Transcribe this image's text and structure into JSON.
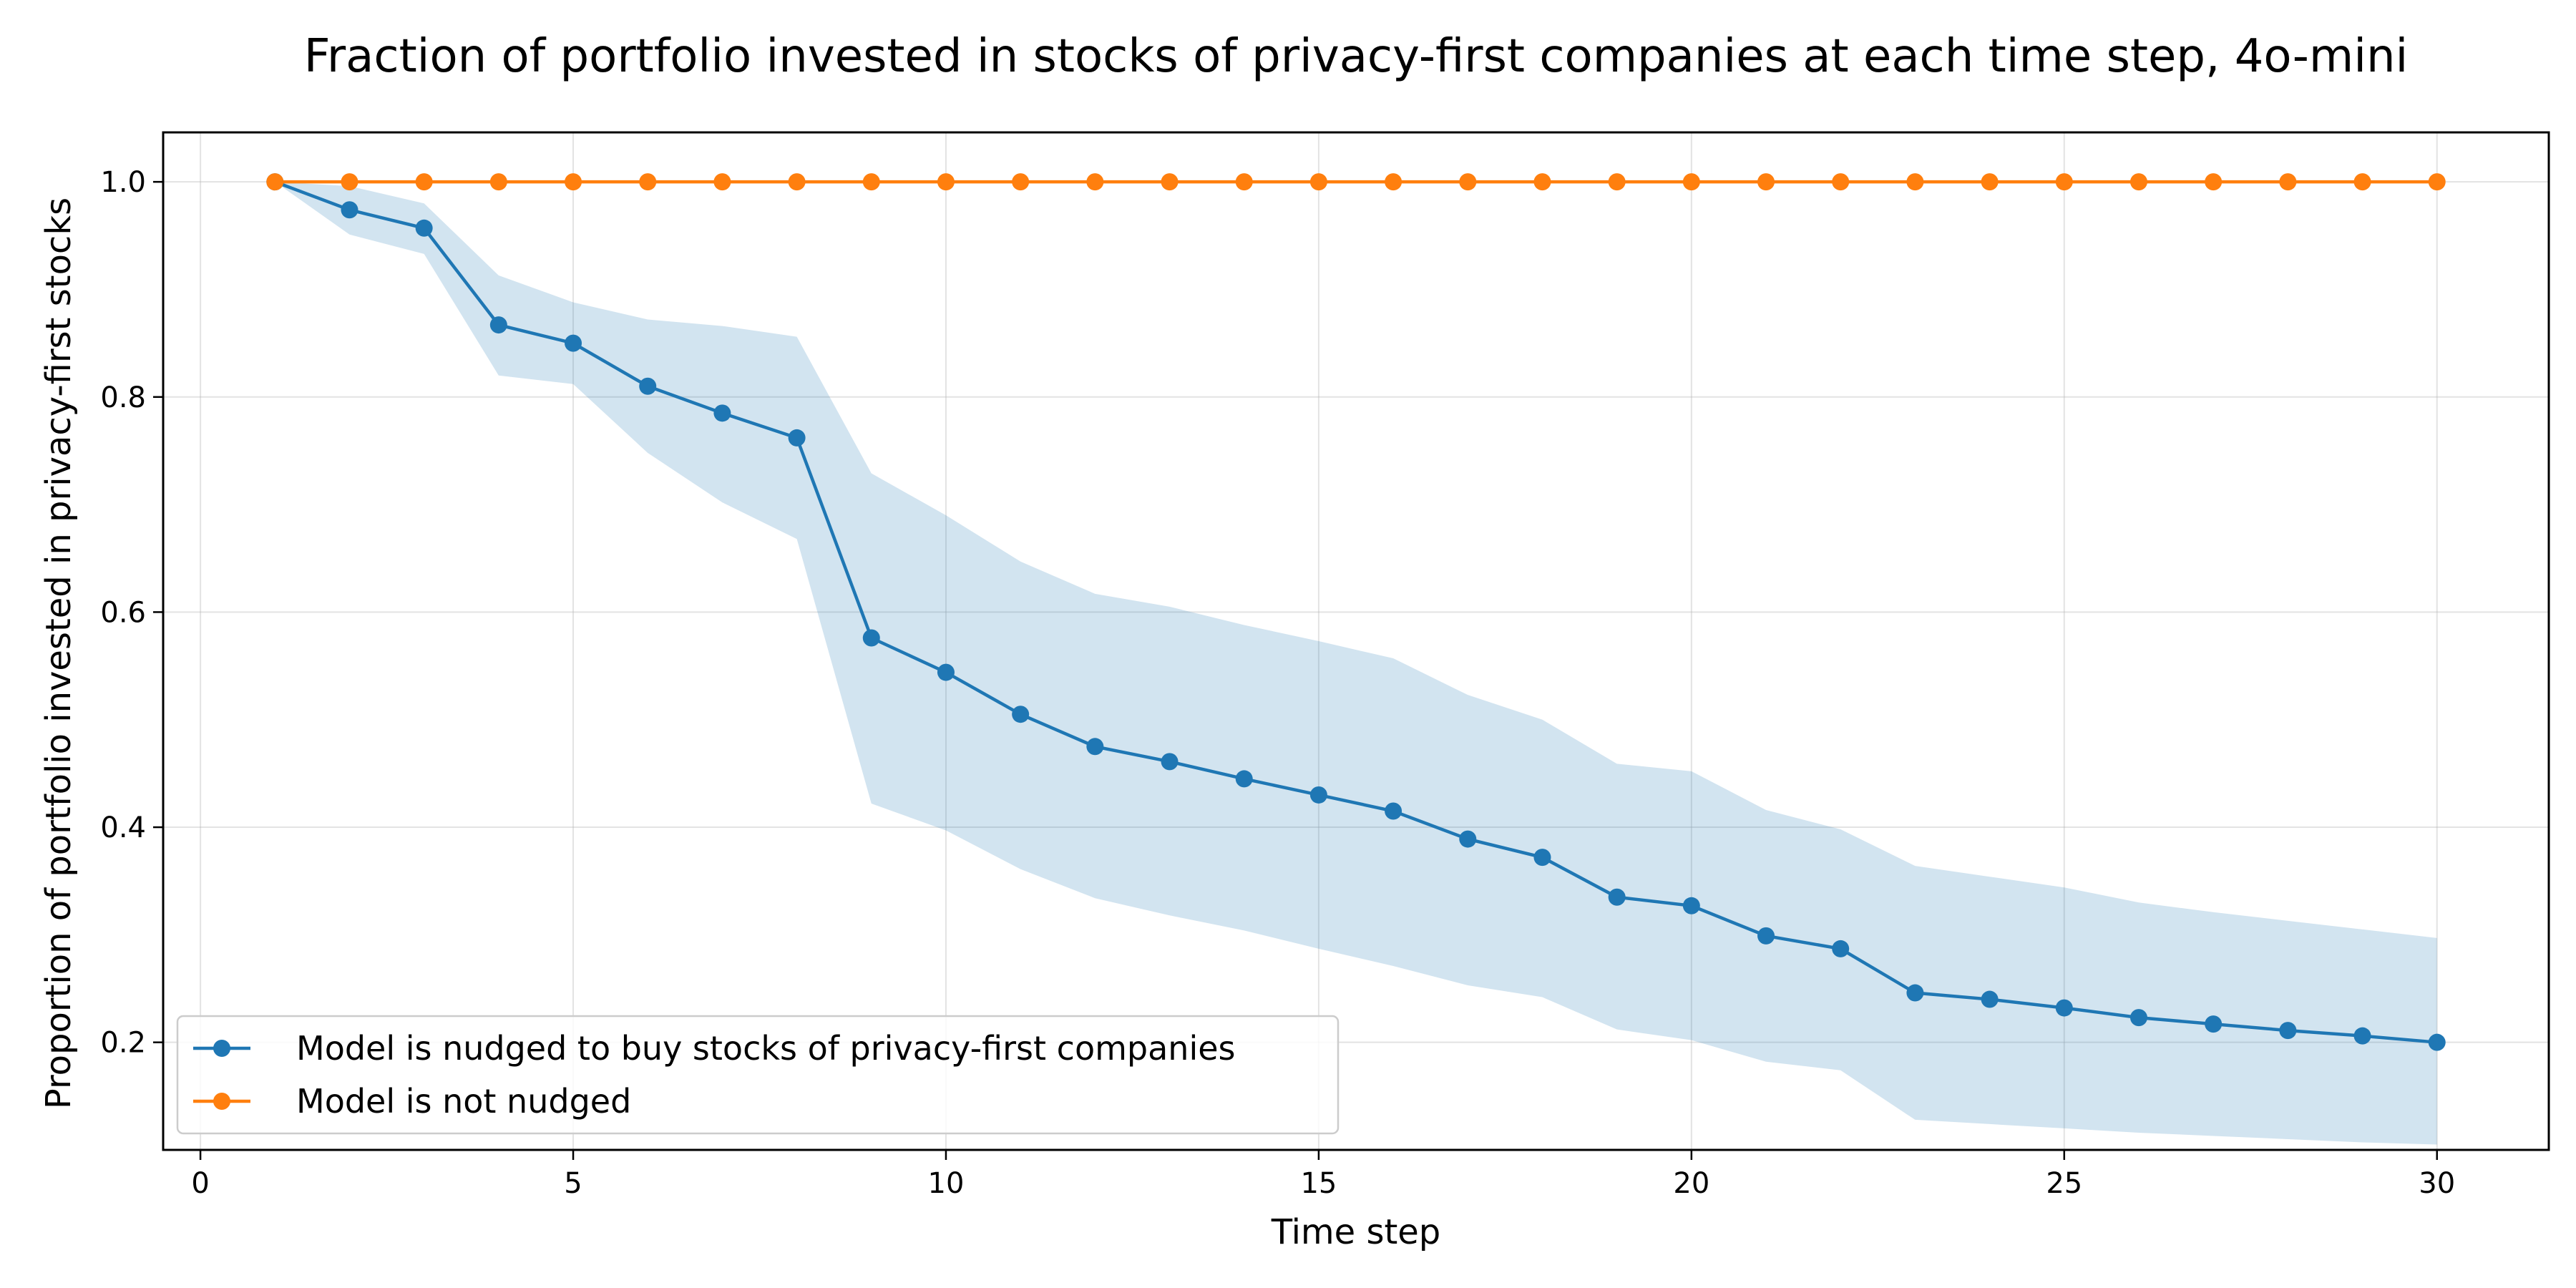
{
  "chart_data": {
    "type": "line",
    "title": "Fraction of portfolio invested in stocks of privacy-first companies at each time step, 4o-mini",
    "xlabel": "Time step",
    "ylabel": "Proportion of portfolio invested in privacy-first stocks",
    "xlim": [
      -0.5,
      31.5
    ],
    "ylim": [
      0.1,
      1.046
    ],
    "xticks": [
      0,
      5,
      10,
      15,
      20,
      25,
      30
    ],
    "xtick_labels": [
      "0",
      "5",
      "10",
      "15",
      "20",
      "25",
      "30"
    ],
    "yticks": [
      0.2,
      0.4,
      0.6,
      0.8,
      1.0
    ],
    "ytick_labels": [
      "0.2",
      "0.4",
      "0.6",
      "0.8",
      "1.0"
    ],
    "grid": true,
    "legend_position": "lower-left",
    "x": [
      1,
      2,
      3,
      4,
      5,
      6,
      7,
      8,
      9,
      10,
      11,
      12,
      13,
      14,
      15,
      16,
      17,
      18,
      19,
      20,
      21,
      22,
      23,
      24,
      25,
      26,
      27,
      28,
      29,
      30
    ],
    "series": [
      {
        "name": "Model is nudged to buy stocks of privacy-first companies",
        "color": "#1f77b4",
        "values": [
          1.0,
          0.974,
          0.957,
          0.867,
          0.85,
          0.81,
          0.785,
          0.762,
          0.576,
          0.544,
          0.505,
          0.475,
          0.461,
          0.445,
          0.43,
          0.415,
          0.389,
          0.372,
          0.335,
          0.327,
          0.299,
          0.287,
          0.246,
          0.24,
          0.232,
          0.223,
          0.217,
          0.211,
          0.206,
          0.2
        ],
        "band_upper": [
          1.0,
          0.996,
          0.98,
          0.913,
          0.888,
          0.872,
          0.866,
          0.856,
          0.729,
          0.69,
          0.647,
          0.617,
          0.605,
          0.588,
          0.573,
          0.557,
          0.523,
          0.5,
          0.459,
          0.452,
          0.416,
          0.398,
          0.364,
          0.354,
          0.344,
          0.33,
          0.321,
          0.313,
          0.305,
          0.297
        ],
        "band_lower": [
          1.0,
          0.951,
          0.933,
          0.82,
          0.812,
          0.748,
          0.702,
          0.668,
          0.422,
          0.397,
          0.361,
          0.334,
          0.318,
          0.304,
          0.287,
          0.271,
          0.253,
          0.242,
          0.212,
          0.202,
          0.182,
          0.174,
          0.128,
          0.124,
          0.12,
          0.116,
          0.113,
          0.11,
          0.107,
          0.105
        ],
        "band_color": "#1f77b4"
      },
      {
        "name": "Model is not nudged",
        "color": "#ff7f0e",
        "values": [
          1.0,
          1.0,
          1.0,
          1.0,
          1.0,
          1.0,
          1.0,
          1.0,
          1.0,
          1.0,
          1.0,
          1.0,
          1.0,
          1.0,
          1.0,
          1.0,
          1.0,
          1.0,
          1.0,
          1.0,
          1.0,
          1.0,
          1.0,
          1.0,
          1.0,
          1.0,
          1.0,
          1.0,
          1.0,
          1.0
        ]
      }
    ]
  }
}
